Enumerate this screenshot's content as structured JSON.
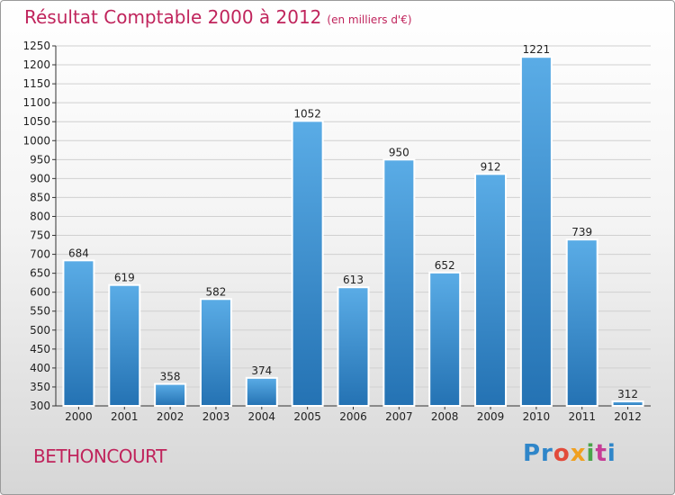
{
  "header": {
    "title": "Résultat Comptable 2000 à 2012",
    "subtitle": "(en milliers d'€)"
  },
  "footer": {
    "city": "BETHONCOURT",
    "logo": [
      "Pr",
      "o",
      "x",
      "i",
      "t",
      "i"
    ]
  },
  "colors": {
    "bar_top": "#5aace6",
    "bar_bottom": "#2472b3",
    "accent": "#c0245c"
  },
  "chart_data": {
    "type": "bar",
    "title": "Résultat Comptable 2000 à 2012",
    "ylabel": "en milliers d'€",
    "categories": [
      "2000",
      "2001",
      "2002",
      "2003",
      "2004",
      "2005",
      "2006",
      "2007",
      "2008",
      "2009",
      "2010",
      "2011",
      "2012"
    ],
    "values": [
      684,
      619,
      358,
      582,
      374,
      1052,
      613,
      950,
      652,
      912,
      1221,
      739,
      312
    ],
    "ylim": [
      300,
      1250
    ],
    "yticks": [
      300,
      350,
      400,
      450,
      500,
      550,
      600,
      650,
      700,
      750,
      800,
      850,
      900,
      950,
      1000,
      1050,
      1100,
      1150,
      1200,
      1250
    ],
    "grid": true
  }
}
